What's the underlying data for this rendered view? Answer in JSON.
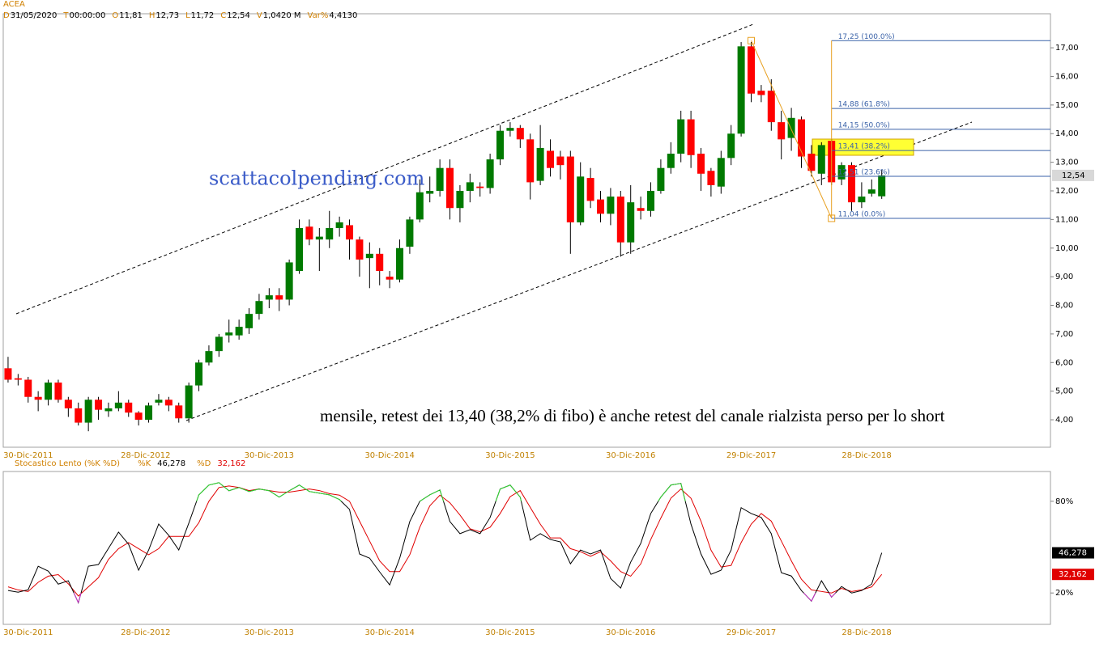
{
  "chart_data": [
    {
      "type": "candlestick",
      "title": "ACEA",
      "info": [
        {
          "key": "D",
          "value": "31/05/2020"
        },
        {
          "key": "T",
          "value": "00:00:00"
        },
        {
          "key": "O",
          "value": "11,81"
        },
        {
          "key": "H",
          "value": "12,73"
        },
        {
          "key": "L",
          "value": "11,72"
        },
        {
          "key": "C",
          "value": "12,54"
        },
        {
          "key": "V",
          "value": "1,0420 M"
        },
        {
          "key": "Var%",
          "value": "4,4130"
        }
      ],
      "watermark": "scattacolpending.com",
      "annotation": "mensile, retest dei 13,40 (38,2% di fibo) è anche retest del canale rialzista perso per lo short",
      "open": [
        5.8,
        5.45,
        5.4,
        4.8,
        4.7,
        5.3,
        4.7,
        4.4,
        3.9,
        4.7,
        4.3,
        4.4,
        4.6,
        4.25,
        4.0,
        4.6,
        4.7,
        4.5,
        4.05,
        5.2,
        6.0,
        6.4,
        6.95,
        6.95,
        7.2,
        7.7,
        8.2,
        8.35,
        8.2,
        9.2,
        10.75,
        10.3,
        10.3,
        10.7,
        10.8,
        10.3,
        9.65,
        9.8,
        9.0,
        8.9,
        10.05,
        11.0,
        11.9,
        12.0,
        12.8,
        11.4,
        12.0,
        12.15,
        12.1,
        13.1,
        14.1,
        14.2,
        13.8,
        12.35,
        13.4,
        13.2,
        13.2,
        10.9,
        12.45,
        11.7,
        11.2,
        11.8,
        10.2,
        11.4,
        11.3,
        12.0,
        12.8,
        13.3,
        14.5,
        13.3,
        12.7,
        12.15,
        13.15,
        14.0,
        17.05,
        15.5,
        15.5,
        14.4,
        13.85,
        14.5,
        13.3,
        12.6,
        13.75,
        12.4,
        12.9,
        11.6,
        11.9,
        11.81
      ],
      "high": [
        6.2,
        5.6,
        5.5,
        5.0,
        5.4,
        5.4,
        4.8,
        4.6,
        4.8,
        4.8,
        4.6,
        5.0,
        4.7,
        4.3,
        4.6,
        4.9,
        4.8,
        4.6,
        5.3,
        6.1,
        6.6,
        7.0,
        7.5,
        7.5,
        7.9,
        8.4,
        8.6,
        8.6,
        9.6,
        11.0,
        11.0,
        10.7,
        11.3,
        11.1,
        11.0,
        10.4,
        10.2,
        10.0,
        9.2,
        10.3,
        11.1,
        12.4,
        12.5,
        13.1,
        13.1,
        12.2,
        12.6,
        12.3,
        13.3,
        14.3,
        14.4,
        14.3,
        14.0,
        14.3,
        13.8,
        13.4,
        13.4,
        13.0,
        12.8,
        12.0,
        12.1,
        12.0,
        12.2,
        11.8,
        12.3,
        13.1,
        13.7,
        14.8,
        14.8,
        13.5,
        12.8,
        13.4,
        14.3,
        17.2,
        17.2,
        15.7,
        15.9,
        14.8,
        14.9,
        14.6,
        13.6,
        13.7,
        13.8,
        13.0,
        13.0,
        12.3,
        12.4,
        12.73
      ],
      "low": [
        5.3,
        5.2,
        4.6,
        4.3,
        4.5,
        4.6,
        4.1,
        3.8,
        3.6,
        4.0,
        4.1,
        4.3,
        4.1,
        3.8,
        3.9,
        4.5,
        4.3,
        3.9,
        3.9,
        5.0,
        5.9,
        6.2,
        6.7,
        6.8,
        7.0,
        7.5,
        7.9,
        7.8,
        8.0,
        9.1,
        10.1,
        9.2,
        10.0,
        10.4,
        9.6,
        9.0,
        8.6,
        8.7,
        8.6,
        8.8,
        9.8,
        10.9,
        11.6,
        11.8,
        11.0,
        10.9,
        11.6,
        11.8,
        11.9,
        12.9,
        13.9,
        13.5,
        11.7,
        12.2,
        12.5,
        12.4,
        9.8,
        10.8,
        11.4,
        10.9,
        10.8,
        9.7,
        9.8,
        11.0,
        11.1,
        11.9,
        12.6,
        13.0,
        12.8,
        12.0,
        11.8,
        11.9,
        12.9,
        13.9,
        15.1,
        15.1,
        14.1,
        13.1,
        13.4,
        12.8,
        12.5,
        12.2,
        12.2,
        12.2,
        11.3,
        11.4,
        11.8,
        11.72
      ],
      "close": [
        5.4,
        5.4,
        4.8,
        4.7,
        5.3,
        4.7,
        4.4,
        3.9,
        4.7,
        4.35,
        4.4,
        4.6,
        4.25,
        4.0,
        4.5,
        4.7,
        4.5,
        4.05,
        5.2,
        6.0,
        6.4,
        6.9,
        7.05,
        7.25,
        7.7,
        8.15,
        8.35,
        8.2,
        9.5,
        10.7,
        10.3,
        10.4,
        10.7,
        10.9,
        10.3,
        9.6,
        9.8,
        9.2,
        8.9,
        10.0,
        11.0,
        11.95,
        12.0,
        12.8,
        11.4,
        12.0,
        12.3,
        12.1,
        13.1,
        14.1,
        14.2,
        13.8,
        12.3,
        13.5,
        12.8,
        12.9,
        10.9,
        12.5,
        11.65,
        11.2,
        11.8,
        10.2,
        11.6,
        11.3,
        12.0,
        12.8,
        13.3,
        14.5,
        13.25,
        12.6,
        12.2,
        13.15,
        14.0,
        17.05,
        15.4,
        15.35,
        14.4,
        13.8,
        14.55,
        13.2,
        12.7,
        13.6,
        12.3,
        12.9,
        11.6,
        11.8,
        12.05,
        12.54
      ],
      "last_label": "12,54",
      "up_color": "#007a00",
      "down_color": "#ff0000",
      "wick_color": "#000000",
      "xlim": [
        -0.48,
        103.8
      ],
      "xticks": [
        {
          "value": 2,
          "label": "30-Dic-2011"
        },
        {
          "value": 13.7,
          "label": "28-Dic-2012"
        },
        {
          "value": 26,
          "label": "30-Dic-2013"
        },
        {
          "value": 38,
          "label": "30-Dic-2014"
        },
        {
          "value": 50,
          "label": "30-Dic-2015"
        },
        {
          "value": 62,
          "label": "30-Dic-2016"
        },
        {
          "value": 74,
          "label": "29-Dic-2017"
        },
        {
          "value": 85.5,
          "label": "28-Dic-2018"
        }
      ],
      "ylim": [
        3.04,
        18.19
      ],
      "yticks": [
        {
          "value": 4,
          "label": "4,00"
        },
        {
          "value": 5,
          "label": "5,00"
        },
        {
          "value": 6,
          "label": "6,00"
        },
        {
          "value": 7,
          "label": "7,00"
        },
        {
          "value": 8,
          "label": "8,00"
        },
        {
          "value": 9,
          "label": "9,00"
        },
        {
          "value": 10,
          "label": "10,00"
        },
        {
          "value": 11,
          "label": "11,00"
        },
        {
          "value": 12,
          "label": "12,00"
        },
        {
          "value": 13,
          "label": "13,00"
        },
        {
          "value": 14,
          "label": "14,00"
        },
        {
          "value": 15,
          "label": "15,00"
        },
        {
          "value": 16,
          "label": "16,00"
        },
        {
          "value": 17,
          "label": "17,00"
        }
      ],
      "fib": {
        "start_index": 74,
        "end_index": 82,
        "color": "#e8a020",
        "line_color": "#3a62a8",
        "levels": [
          {
            "value": 17.25,
            "label": "17,25 (100.0%)"
          },
          {
            "value": 14.88,
            "label": "14,88 (61.8%)"
          },
          {
            "value": 14.15,
            "label": "14,15 (50.0%)"
          },
          {
            "value": 13.41,
            "label": "13,41 (38.2%)"
          },
          {
            "value": 12.51,
            "label": "12,51 (23.6%)"
          },
          {
            "value": 11.04,
            "label": "11,04 (0.0%)"
          }
        ]
      }
    },
    {
      "type": "line",
      "title": "Stocastico Lento (%K %D)",
      "series": [
        {
          "name": "%K",
          "color": "#000000",
          "last_label": "46,278",
          "values": [
            21.6,
            20.5,
            22.1,
            37.5,
            34.3,
            25.8,
            28,
            13.6,
            37.5,
            38.6,
            49.2,
            59.8,
            51.9,
            34.9,
            48.1,
            65.1,
            57.7,
            48.1,
            65.7,
            84.2,
            90.6,
            92.2,
            86.9,
            89.0,
            86.4,
            88.0,
            86.9,
            82.7,
            86.9,
            90.6,
            86.4,
            85.3,
            84.2,
            81.1,
            74.7,
            45.5,
            42.8,
            33.8,
            25.3,
            42.8,
            66.7,
            80.0,
            84.2,
            87.4,
            66.7,
            58.8,
            61.4,
            58.8,
            69.4,
            88.0,
            90.6,
            82.7,
            54.5,
            58.8,
            55.0,
            53.4,
            39.1,
            48.1,
            45.5,
            48.1,
            29.5,
            23.2,
            40.2,
            52.4,
            72.0,
            82.7,
            90.6,
            91.7,
            65.1,
            45.5,
            32.2,
            34.9,
            48.1,
            75.8,
            72.0,
            69.4,
            58.8,
            33.3,
            31.1,
            21.6,
            14.7,
            28.0,
            17.3,
            24.2,
            20.0,
            21.6,
            25.8,
            46.278
          ]
        },
        {
          "name": "%D",
          "color": "#e00000",
          "last_label": "32,162",
          "values": [
            24,
            22,
            21,
            27,
            31,
            32,
            26,
            18,
            24,
            30,
            42,
            49,
            53,
            49,
            45,
            49,
            57,
            57,
            57,
            66,
            80,
            89,
            90,
            89,
            87,
            88,
            87,
            86,
            86,
            87,
            88,
            87,
            85,
            84,
            80,
            67,
            54,
            41,
            34,
            34,
            45,
            63,
            77,
            84,
            79,
            71,
            62,
            60,
            63,
            72,
            83,
            87,
            76,
            65,
            56,
            56,
            49,
            47,
            44,
            47,
            41,
            34,
            31,
            39,
            55,
            69,
            82,
            88,
            82,
            67,
            48,
            37,
            38,
            53,
            65,
            72,
            67,
            54,
            41,
            29,
            22,
            21,
            20,
            23,
            21,
            22,
            24,
            32.162
          ]
        }
      ],
      "overbought": 80,
      "oversold": 20,
      "overbought_color": "#33dd33",
      "oversold_color": "#cc33cc",
      "xlim": [
        -0.48,
        103.8
      ],
      "xticks": [
        {
          "value": 2,
          "label": "30-Dic-2011"
        },
        {
          "value": 13.7,
          "label": "28-Dic-2012"
        },
        {
          "value": 26,
          "label": "30-Dic-2013"
        },
        {
          "value": 38,
          "label": "30-Dic-2014"
        },
        {
          "value": 50,
          "label": "30-Dic-2015"
        },
        {
          "value": 62,
          "label": "30-Dic-2016"
        },
        {
          "value": 74,
          "label": "29-Dic-2017"
        },
        {
          "value": 85.5,
          "label": "28-Dic-2018"
        }
      ],
      "ylim": [
        0,
        100
      ],
      "yticks": [
        {
          "value": 20,
          "label": "20%"
        },
        {
          "value": 80,
          "label": "80%"
        }
      ]
    }
  ]
}
